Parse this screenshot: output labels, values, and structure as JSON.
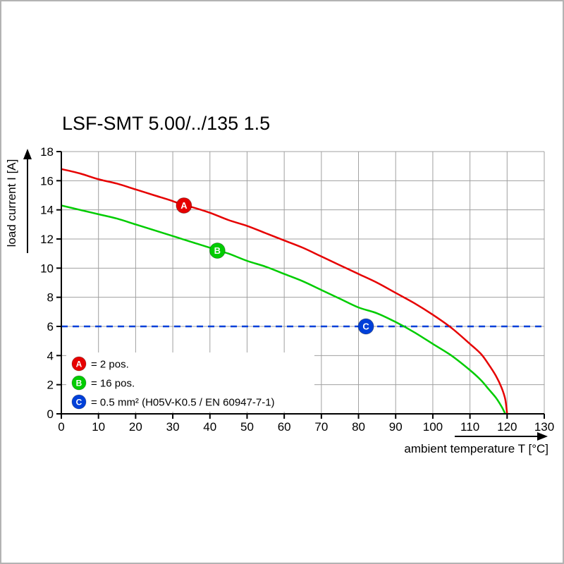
{
  "title": "LSF-SMT 5.00/../135 1.5",
  "colors": {
    "red": "#e60000",
    "green": "#00cc00",
    "blue": "#0040d9",
    "grid": "#a0a0a0",
    "axis": "#000000",
    "frame": "#b3b3b3",
    "background": "#ffffff"
  },
  "chart_data": {
    "type": "line",
    "title": "LSF-SMT 5.00/../135 1.5",
    "xlabel": "ambient temperature T [°C]",
    "ylabel": "load current I [A]",
    "xlim": [
      0,
      130
    ],
    "ylim": [
      0,
      18
    ],
    "x_tick_step": 10,
    "y_tick_step": 2,
    "x_ticks": [
      0,
      10,
      20,
      30,
      40,
      50,
      60,
      70,
      80,
      90,
      100,
      110,
      120,
      130
    ],
    "y_ticks": [
      0,
      2,
      4,
      6,
      8,
      10,
      12,
      14,
      16,
      18
    ],
    "grid": true,
    "legend_position": "bottom-left",
    "series": [
      {
        "id": "A",
        "legend_label": "= 2 pos.",
        "color": "#e60000",
        "style": "solid",
        "marker": {
          "x": 33,
          "y": 14.3
        },
        "points": [
          [
            0,
            16.8
          ],
          [
            5,
            16.5
          ],
          [
            10,
            16.1
          ],
          [
            15,
            15.8
          ],
          [
            20,
            15.4
          ],
          [
            25,
            15.0
          ],
          [
            30,
            14.6
          ],
          [
            33,
            14.3
          ],
          [
            35,
            14.2
          ],
          [
            40,
            13.8
          ],
          [
            45,
            13.3
          ],
          [
            50,
            12.9
          ],
          [
            55,
            12.4
          ],
          [
            60,
            11.9
          ],
          [
            65,
            11.4
          ],
          [
            70,
            10.8
          ],
          [
            75,
            10.2
          ],
          [
            80,
            9.6
          ],
          [
            85,
            9.0
          ],
          [
            90,
            8.3
          ],
          [
            95,
            7.6
          ],
          [
            100,
            6.8
          ],
          [
            105,
            5.9
          ],
          [
            110,
            4.8
          ],
          [
            113,
            4.1
          ],
          [
            115,
            3.4
          ],
          [
            117,
            2.6
          ],
          [
            118.5,
            1.8
          ],
          [
            119.5,
            1.0
          ],
          [
            120,
            0
          ]
        ]
      },
      {
        "id": "B",
        "legend_label": "= 16 pos.",
        "color": "#00cc00",
        "style": "solid",
        "marker": {
          "x": 42,
          "y": 11.2
        },
        "points": [
          [
            0,
            14.3
          ],
          [
            5,
            14.0
          ],
          [
            10,
            13.7
          ],
          [
            15,
            13.4
          ],
          [
            20,
            13.0
          ],
          [
            25,
            12.6
          ],
          [
            30,
            12.2
          ],
          [
            35,
            11.8
          ],
          [
            40,
            11.4
          ],
          [
            42,
            11.2
          ],
          [
            45,
            11.0
          ],
          [
            50,
            10.5
          ],
          [
            55,
            10.1
          ],
          [
            60,
            9.6
          ],
          [
            65,
            9.1
          ],
          [
            70,
            8.5
          ],
          [
            75,
            7.9
          ],
          [
            80,
            7.3
          ],
          [
            85,
            6.9
          ],
          [
            90,
            6.3
          ],
          [
            95,
            5.6
          ],
          [
            100,
            4.8
          ],
          [
            105,
            4.0
          ],
          [
            110,
            3.0
          ],
          [
            113,
            2.3
          ],
          [
            115,
            1.7
          ],
          [
            117,
            1.1
          ],
          [
            118.5,
            0.5
          ],
          [
            119.5,
            0
          ]
        ]
      },
      {
        "id": "C",
        "legend_label": "= 0.5 mm² (H05V-K0.5 / EN 60947-7-1)",
        "color": "#0040d9",
        "style": "dashed",
        "marker": {
          "x": 82,
          "y": 6
        },
        "points": [
          [
            0,
            6
          ],
          [
            130,
            6
          ]
        ]
      }
    ]
  }
}
